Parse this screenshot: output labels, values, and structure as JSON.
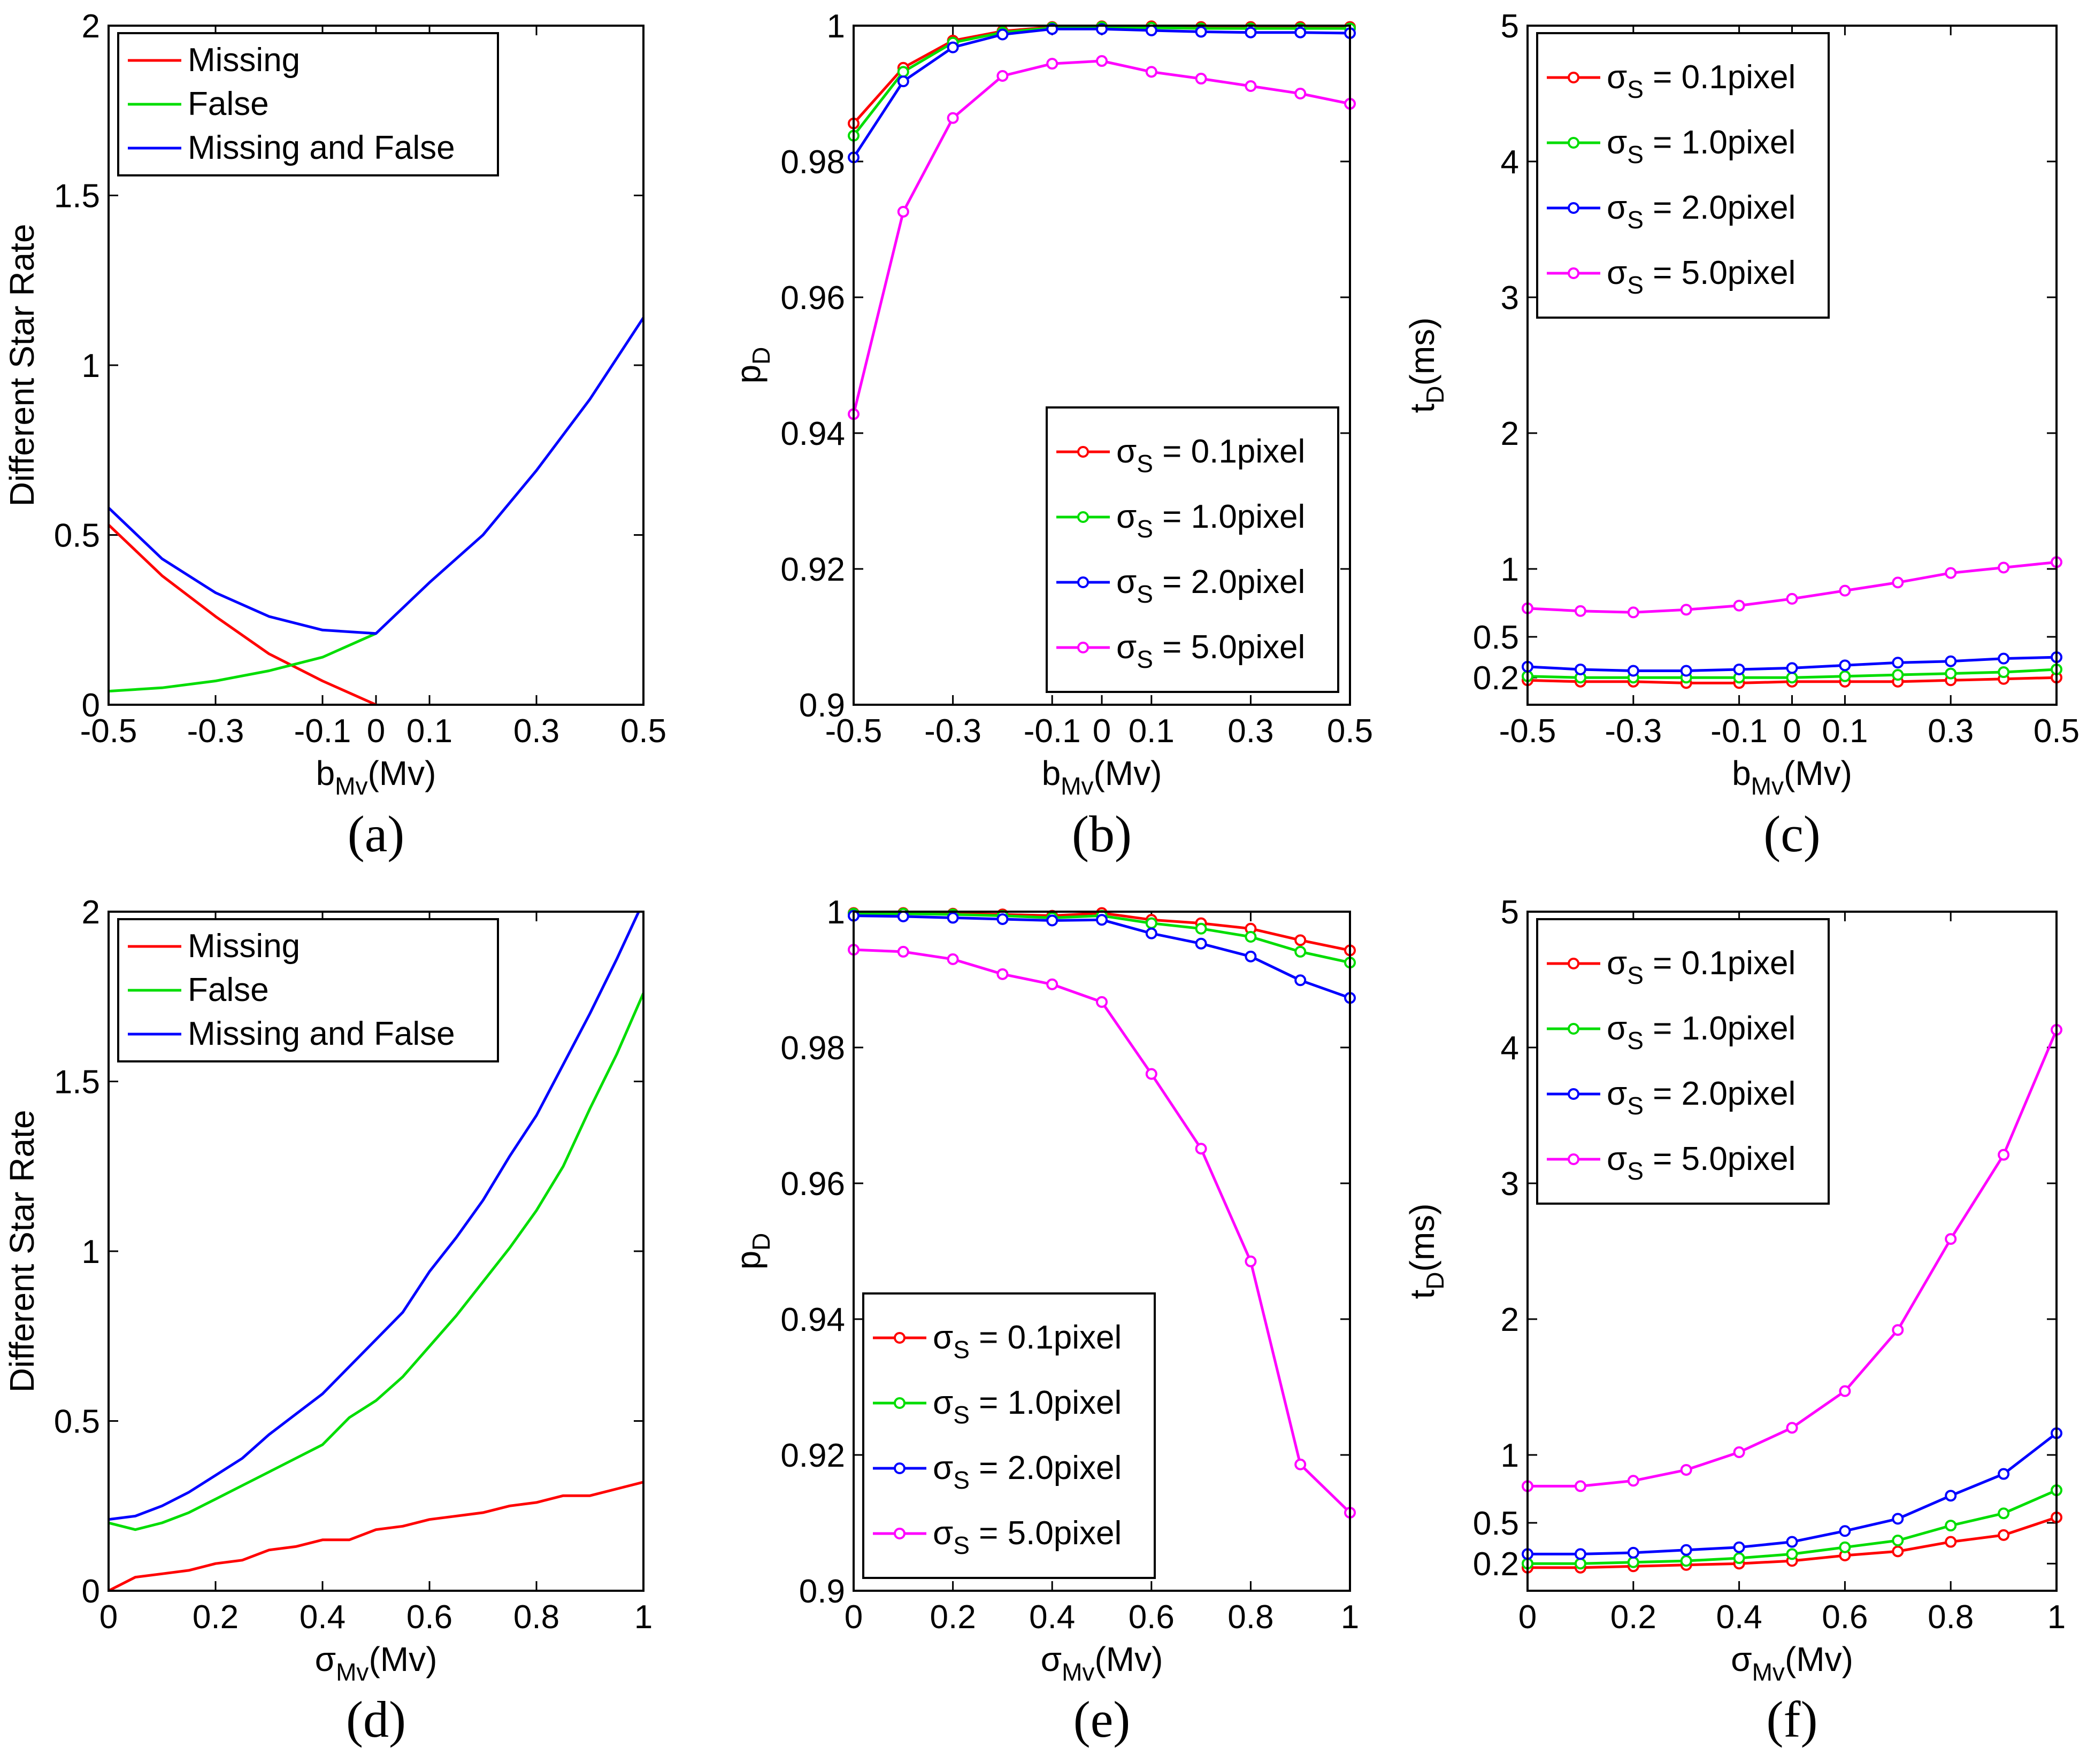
{
  "chart_data": [
    {
      "id": "a",
      "type": "line",
      "caption": "(a)",
      "xlabel": "b",
      "xlabel_sub": "Mv",
      "xlabel_suffix": "(Mv)",
      "ylabel": "Different Star Rate",
      "xlim": [
        -0.5,
        0.5
      ],
      "ylim": [
        0,
        2
      ],
      "xticks": [
        -0.5,
        -0.3,
        -0.1,
        0,
        0.1,
        0.3,
        0.5
      ],
      "xtick_labels": [
        "-0.5",
        "-0.3",
        "-0.1",
        "0",
        "0.1",
        "0.3",
        "0.5"
      ],
      "yticks": [
        0,
        0.5,
        1,
        1.5,
        2
      ],
      "ytick_labels": [
        "0",
        "0.5",
        "1",
        "1.5",
        "2"
      ],
      "legend_position": "top-left",
      "markers": false,
      "series": [
        {
          "name": "Missing",
          "color": "#ff0000",
          "x": [
            -0.5,
            -0.4,
            -0.3,
            -0.2,
            -0.1,
            0
          ],
          "y": [
            0.53,
            0.38,
            0.26,
            0.15,
            0.07,
            0.0
          ]
        },
        {
          "name": "False",
          "color": "#00dd00",
          "x": [
            -0.5,
            -0.4,
            -0.3,
            -0.2,
            -0.1,
            0
          ],
          "y": [
            0.04,
            0.05,
            0.07,
            0.1,
            0.14,
            0.21
          ]
        },
        {
          "name": "Missing and False",
          "color": "#0000ff",
          "x": [
            -0.5,
            -0.4,
            -0.3,
            -0.2,
            -0.1,
            0,
            0.1,
            0.2,
            0.3,
            0.4,
            0.5
          ],
          "y": [
            0.58,
            0.43,
            0.33,
            0.26,
            0.22,
            0.21,
            0.36,
            0.5,
            0.69,
            0.9,
            1.14
          ]
        }
      ]
    },
    {
      "id": "b",
      "type": "line",
      "caption": "(b)",
      "xlabel": "b",
      "xlabel_sub": "Mv",
      "xlabel_suffix": "(Mv)",
      "ylabel": "p",
      "ylabel_sub": "D",
      "xlim": [
        -0.5,
        0.5
      ],
      "ylim": [
        0.9,
        1
      ],
      "xticks": [
        -0.5,
        -0.3,
        -0.1,
        0,
        0.1,
        0.3,
        0.5
      ],
      "xtick_labels": [
        "-0.5",
        "-0.3",
        "-0.1",
        "0",
        "0.1",
        "0.3",
        "0.5"
      ],
      "yticks": [
        0.9,
        0.92,
        0.94,
        0.96,
        0.98,
        1
      ],
      "ytick_labels": [
        "0.9",
        "0.92",
        "0.94",
        "0.96",
        "0.98",
        "1"
      ],
      "legend_position": "bottom-right",
      "markers": true,
      "series": [
        {
          "name": "σ",
          "name_sub": "S",
          "name_suffix": " = 0.1pixel",
          "color": "#ff0000",
          "x": [
            -0.5,
            -0.4,
            -0.3,
            -0.2,
            -0.1,
            0,
            0.1,
            0.2,
            0.3,
            0.4,
            0.5
          ],
          "y": [
            0.9856,
            0.9938,
            0.9978,
            0.9992,
            0.9998,
            0.9999,
            0.9999,
            0.9998,
            0.9998,
            0.9998,
            0.9998
          ]
        },
        {
          "name": "σ",
          "name_sub": "S",
          "name_suffix": " = 1.0pixel",
          "color": "#00dd00",
          "x": [
            -0.5,
            -0.4,
            -0.3,
            -0.2,
            -0.1,
            0,
            0.1,
            0.2,
            0.3,
            0.4,
            0.5
          ],
          "y": [
            0.9838,
            0.9932,
            0.9975,
            0.999,
            0.9997,
            0.9998,
            0.9997,
            0.9996,
            0.9996,
            0.9996,
            0.9996
          ]
        },
        {
          "name": "σ",
          "name_sub": "S",
          "name_suffix": " = 2.0pixel",
          "color": "#0000ff",
          "x": [
            -0.5,
            -0.4,
            -0.3,
            -0.2,
            -0.1,
            0,
            0.1,
            0.2,
            0.3,
            0.4,
            0.5
          ],
          "y": [
            0.9806,
            0.9918,
            0.9968,
            0.9987,
            0.9995,
            0.9995,
            0.9993,
            0.9991,
            0.999,
            0.999,
            0.9989
          ]
        },
        {
          "name": "σ",
          "name_sub": "S",
          "name_suffix": " = 5.0pixel",
          "color": "#ff00ff",
          "x": [
            -0.5,
            -0.4,
            -0.3,
            -0.2,
            -0.1,
            0,
            0.1,
            0.2,
            0.3,
            0.4,
            0.5
          ],
          "y": [
            0.9428,
            0.9726,
            0.9864,
            0.9926,
            0.9944,
            0.9948,
            0.9932,
            0.9922,
            0.9911,
            0.99,
            0.9885
          ]
        }
      ]
    },
    {
      "id": "c",
      "type": "line",
      "caption": "(c)",
      "xlabel": "b",
      "xlabel_sub": "Mv",
      "xlabel_suffix": "(Mv)",
      "ylabel": "t",
      "ylabel_sub": "D",
      "ylabel_suffix": "(ms)",
      "xlim": [
        -0.5,
        0.5
      ],
      "ylim": [
        0,
        5
      ],
      "xticks": [
        -0.5,
        -0.3,
        -0.1,
        0,
        0.1,
        0.3,
        0.5
      ],
      "xtick_labels": [
        "-0.5",
        "-0.3",
        "-0.1",
        "0",
        "0.1",
        "0.3",
        "0.5"
      ],
      "yticks": [
        0.2,
        0.5,
        1,
        2,
        3,
        4,
        5
      ],
      "ytick_labels": [
        "0.2",
        "0.5",
        "1",
        "2",
        "3",
        "4",
        "5"
      ],
      "legend_position": "top-left",
      "markers": true,
      "series": [
        {
          "name": "σ",
          "name_sub": "S",
          "name_suffix": " = 0.1pixel",
          "color": "#ff0000",
          "x": [
            -0.5,
            -0.4,
            -0.3,
            -0.2,
            -0.1,
            0,
            0.1,
            0.2,
            0.3,
            0.4,
            0.5
          ],
          "y": [
            0.18,
            0.17,
            0.17,
            0.16,
            0.16,
            0.17,
            0.17,
            0.17,
            0.18,
            0.19,
            0.2
          ]
        },
        {
          "name": "σ",
          "name_sub": "S",
          "name_suffix": " = 1.0pixel",
          "color": "#00dd00",
          "x": [
            -0.5,
            -0.4,
            -0.3,
            -0.2,
            -0.1,
            0,
            0.1,
            0.2,
            0.3,
            0.4,
            0.5
          ],
          "y": [
            0.21,
            0.2,
            0.2,
            0.2,
            0.2,
            0.2,
            0.21,
            0.22,
            0.23,
            0.24,
            0.26
          ]
        },
        {
          "name": "σ",
          "name_sub": "S",
          "name_suffix": " = 2.0pixel",
          "color": "#0000ff",
          "x": [
            -0.5,
            -0.4,
            -0.3,
            -0.2,
            -0.1,
            0,
            0.1,
            0.2,
            0.3,
            0.4,
            0.5
          ],
          "y": [
            0.28,
            0.26,
            0.25,
            0.25,
            0.26,
            0.27,
            0.29,
            0.31,
            0.32,
            0.34,
            0.35
          ]
        },
        {
          "name": "σ",
          "name_sub": "S",
          "name_suffix": " = 5.0pixel",
          "color": "#ff00ff",
          "x": [
            -0.5,
            -0.4,
            -0.3,
            -0.2,
            -0.1,
            0,
            0.1,
            0.2,
            0.3,
            0.4,
            0.5
          ],
          "y": [
            0.71,
            0.69,
            0.68,
            0.7,
            0.73,
            0.78,
            0.84,
            0.9,
            0.97,
            1.01,
            1.05
          ]
        }
      ]
    },
    {
      "id": "d",
      "type": "line",
      "caption": "(d)",
      "xlabel": "σ",
      "xlabel_sub": "Mv",
      "xlabel_suffix": "(Mv)",
      "ylabel": "Different Star Rate",
      "xlim": [
        0,
        1
      ],
      "ylim": [
        0,
        2
      ],
      "xticks": [
        0,
        0.2,
        0.4,
        0.6,
        0.8,
        1
      ],
      "xtick_labels": [
        "0",
        "0.2",
        "0.4",
        "0.6",
        "0.8",
        "1"
      ],
      "yticks": [
        0,
        0.5,
        1,
        1.5,
        2
      ],
      "ytick_labels": [
        "0",
        "0.5",
        "1",
        "1.5",
        "2"
      ],
      "legend_position": "top-left",
      "markers": false,
      "series": [
        {
          "name": "Missing",
          "color": "#ff0000",
          "x": [
            0,
            0.05,
            0.1,
            0.15,
            0.2,
            0.25,
            0.3,
            0.35,
            0.4,
            0.45,
            0.5,
            0.55,
            0.6,
            0.65,
            0.7,
            0.75,
            0.8,
            0.85,
            0.9,
            0.95,
            1
          ],
          "y": [
            0.0,
            0.04,
            0.05,
            0.06,
            0.08,
            0.09,
            0.12,
            0.13,
            0.15,
            0.15,
            0.18,
            0.19,
            0.21,
            0.22,
            0.23,
            0.25,
            0.26,
            0.28,
            0.28,
            0.3,
            0.32
          ]
        },
        {
          "name": "False",
          "color": "#00dd00",
          "x": [
            0,
            0.05,
            0.1,
            0.15,
            0.2,
            0.25,
            0.3,
            0.35,
            0.4,
            0.45,
            0.5,
            0.55,
            0.6,
            0.65,
            0.7,
            0.75,
            0.8,
            0.85,
            0.9,
            0.95,
            1
          ],
          "y": [
            0.2,
            0.18,
            0.2,
            0.23,
            0.27,
            0.31,
            0.35,
            0.39,
            0.43,
            0.51,
            0.56,
            0.63,
            0.72,
            0.81,
            0.91,
            1.01,
            1.12,
            1.25,
            1.42,
            1.58,
            1.76
          ]
        },
        {
          "name": "Missing and False",
          "color": "#0000ff",
          "x": [
            0,
            0.05,
            0.1,
            0.15,
            0.2,
            0.25,
            0.3,
            0.35,
            0.4,
            0.45,
            0.5,
            0.55,
            0.6,
            0.65,
            0.7,
            0.75,
            0.8,
            0.85,
            0.9,
            0.95,
            1
          ],
          "y": [
            0.21,
            0.22,
            0.25,
            0.29,
            0.34,
            0.39,
            0.46,
            0.52,
            0.58,
            0.66,
            0.74,
            0.82,
            0.94,
            1.04,
            1.15,
            1.28,
            1.4,
            1.55,
            1.7,
            1.86,
            2.03
          ]
        }
      ]
    },
    {
      "id": "e",
      "type": "line",
      "caption": "(e)",
      "xlabel": "σ",
      "xlabel_sub": "Mv",
      "xlabel_suffix": "(Mv)",
      "ylabel": "p",
      "ylabel_sub": "D",
      "xlim": [
        0,
        1
      ],
      "ylim": [
        0.9,
        1
      ],
      "xticks": [
        0,
        0.2,
        0.4,
        0.6,
        0.8,
        1
      ],
      "xtick_labels": [
        "0",
        "0.2",
        "0.4",
        "0.6",
        "0.8",
        "1"
      ],
      "yticks": [
        0.9,
        0.92,
        0.94,
        0.96,
        0.98,
        1
      ],
      "ytick_labels": [
        "0.9",
        "0.92",
        "0.94",
        "0.96",
        "0.98",
        "1"
      ],
      "legend_position": "bottom-left",
      "markers": true,
      "series": [
        {
          "name": "σ",
          "name_sub": "S",
          "name_suffix": " = 0.1pixel",
          "color": "#ff0000",
          "x": [
            0,
            0.1,
            0.2,
            0.3,
            0.4,
            0.5,
            0.6,
            0.7,
            0.8,
            0.9,
            1
          ],
          "y": [
            0.9998,
            0.9998,
            0.9997,
            0.9996,
            0.9994,
            0.9998,
            0.9988,
            0.9983,
            0.9975,
            0.9958,
            0.9943
          ]
        },
        {
          "name": "σ",
          "name_sub": "S",
          "name_suffix": " = 1.0pixel",
          "color": "#00dd00",
          "x": [
            0,
            0.1,
            0.2,
            0.3,
            0.4,
            0.5,
            0.6,
            0.7,
            0.8,
            0.9,
            1
          ],
          "y": [
            0.9997,
            0.9997,
            0.9996,
            0.9994,
            0.9991,
            0.9994,
            0.9983,
            0.9975,
            0.9963,
            0.9941,
            0.9925
          ]
        },
        {
          "name": "σ",
          "name_sub": "S",
          "name_suffix": " = 2.0pixel",
          "color": "#0000ff",
          "x": [
            0,
            0.1,
            0.2,
            0.3,
            0.4,
            0.5,
            0.6,
            0.7,
            0.8,
            0.9,
            1
          ],
          "y": [
            0.9994,
            0.9993,
            0.9991,
            0.9989,
            0.9987,
            0.9988,
            0.9968,
            0.9953,
            0.9934,
            0.9899,
            0.9873
          ]
        },
        {
          "name": "σ",
          "name_sub": "S",
          "name_suffix": " = 5.0pixel",
          "color": "#ff00ff",
          "x": [
            0,
            0.1,
            0.2,
            0.3,
            0.4,
            0.5,
            0.6,
            0.7,
            0.8,
            0.9,
            1
          ],
          "y": [
            0.9944,
            0.9941,
            0.993,
            0.9908,
            0.9893,
            0.9867,
            0.9761,
            0.9651,
            0.9485,
            0.9186,
            0.9115
          ]
        }
      ]
    },
    {
      "id": "f",
      "type": "line",
      "caption": "(f)",
      "xlabel": "σ",
      "xlabel_sub": "Mv",
      "xlabel_suffix": "(Mv)",
      "ylabel": "t",
      "ylabel_sub": "D",
      "ylabel_suffix": "(ms)",
      "xlim": [
        0,
        1
      ],
      "ylim": [
        0,
        5
      ],
      "xticks": [
        0,
        0.2,
        0.4,
        0.6,
        0.8,
        1
      ],
      "xtick_labels": [
        "0",
        "0.2",
        "0.4",
        "0.6",
        "0.8",
        "1"
      ],
      "yticks": [
        0.2,
        0.5,
        1,
        2,
        3,
        4,
        5
      ],
      "ytick_labels": [
        "0.2",
        "0.5",
        "1",
        "2",
        "3",
        "4",
        "5"
      ],
      "legend_position": "top-left",
      "markers": true,
      "series": [
        {
          "name": "σ",
          "name_sub": "S",
          "name_suffix": " = 0.1pixel",
          "color": "#ff0000",
          "x": [
            0,
            0.1,
            0.2,
            0.3,
            0.4,
            0.5,
            0.6,
            0.7,
            0.8,
            0.9,
            1
          ],
          "y": [
            0.17,
            0.17,
            0.18,
            0.19,
            0.2,
            0.22,
            0.26,
            0.29,
            0.36,
            0.41,
            0.54
          ]
        },
        {
          "name": "σ",
          "name_sub": "S",
          "name_suffix": " = 1.0pixel",
          "color": "#00dd00",
          "x": [
            0,
            0.1,
            0.2,
            0.3,
            0.4,
            0.5,
            0.6,
            0.7,
            0.8,
            0.9,
            1
          ],
          "y": [
            0.2,
            0.2,
            0.21,
            0.22,
            0.24,
            0.27,
            0.32,
            0.37,
            0.48,
            0.57,
            0.74
          ]
        },
        {
          "name": "σ",
          "name_sub": "S",
          "name_suffix": " = 2.0pixel",
          "color": "#0000ff",
          "x": [
            0,
            0.1,
            0.2,
            0.3,
            0.4,
            0.5,
            0.6,
            0.7,
            0.8,
            0.9,
            1
          ],
          "y": [
            0.27,
            0.27,
            0.28,
            0.3,
            0.32,
            0.36,
            0.44,
            0.53,
            0.7,
            0.86,
            1.16
          ]
        },
        {
          "name": "σ",
          "name_sub": "S",
          "name_suffix": " = 5.0pixel",
          "color": "#ff00ff",
          "x": [
            0,
            0.1,
            0.2,
            0.3,
            0.4,
            0.5,
            0.6,
            0.7,
            0.8,
            0.9,
            1
          ],
          "y": [
            0.77,
            0.77,
            0.81,
            0.89,
            1.02,
            1.2,
            1.47,
            1.92,
            2.59,
            3.21,
            4.13
          ]
        }
      ]
    }
  ]
}
